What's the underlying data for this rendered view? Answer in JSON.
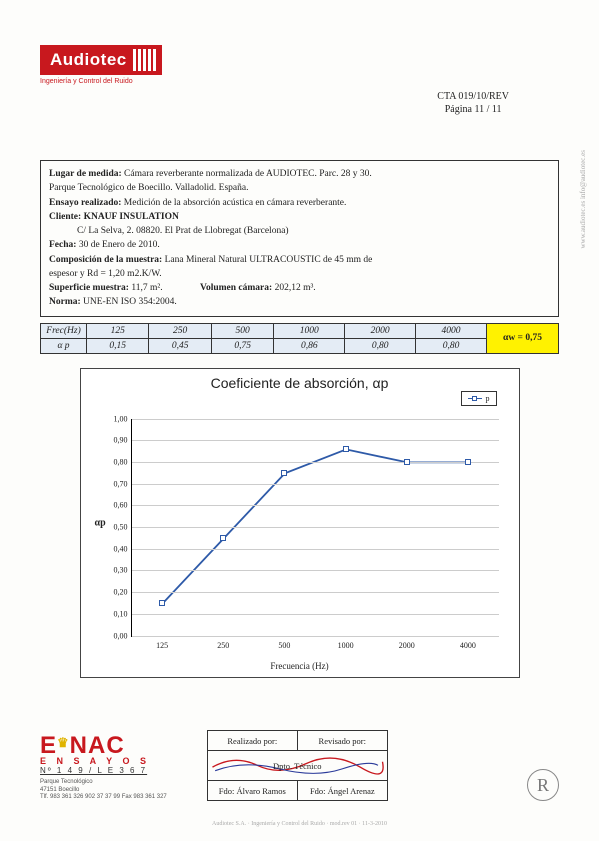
{
  "logo": {
    "name": "Audiotec",
    "tagline": "Ingeniería y Control del Ruido"
  },
  "doc_ref": {
    "code": "CTA 019/10/REV",
    "page": "Página 11 / 11"
  },
  "side_text": "www.audiotec.es    info@audiotec.es",
  "info": {
    "lugar_label": "Lugar de medida:",
    "lugar": "Cámara reverberante normalizada de AUDIOTEC. Parc. 28 y 30.",
    "lugar2": "Parque Tecnológico de Boecillo. Valladolid. España.",
    "ensayo_label": "Ensayo realizado:",
    "ensayo": "Medición de la absorción acústica en cámara reverberante.",
    "cliente_label": "Cliente:",
    "cliente": "KNAUF INSULATION",
    "cliente_addr": "C/ La Selva, 2. 08820. El Prat de Llobregat (Barcelona)",
    "fecha_label": "Fecha:",
    "fecha": "30 de Enero de 2010.",
    "comp_label": "Composición de la muestra:",
    "comp": "Lana Mineral Natural ULTRACOUSTIC de 45 mm de",
    "comp2": "espesor y Rd = 1,20 m2.K/W.",
    "sup_label": "Superficie muestra:",
    "sup": "11,7 m².",
    "vol_label": "Volumen cámara:",
    "vol": "202,12 m³.",
    "norma_label": "Norma:",
    "norma": "UNE-EN ISO 354:2004."
  },
  "table": {
    "freq_label": "Frec(Hz)",
    "alpha_label": "α p",
    "cols": [
      "125",
      "250",
      "500",
      "1000",
      "2000",
      "4000"
    ],
    "vals": [
      "0,15",
      "0,45",
      "0,75",
      "0,86",
      "0,80",
      "0,80"
    ],
    "aw_label": "αw = 0,75"
  },
  "chart": {
    "title": "Coeficiente de absorción,  αp",
    "legend": "p",
    "x_title": "Frecuencia (Hz)",
    "y_title": "αp",
    "x_categories": [
      "125",
      "250",
      "500",
      "1000",
      "2000",
      "4000"
    ],
    "y_ticks": [
      "0,00",
      "0,10",
      "0,20",
      "0,30",
      "0,40",
      "0,50",
      "0,60",
      "0,70",
      "0,80",
      "0,90",
      "1,00"
    ],
    "series": [
      0.15,
      0.45,
      0.75,
      0.86,
      0.8,
      0.8
    ],
    "line_color": "#2e5aa8",
    "grid_color": "#cccccc",
    "ylim": [
      0,
      1
    ]
  },
  "footer": {
    "enac_main": "ENAC",
    "enac_sub": "E N S A Y O S",
    "enac_num": "Nº 1 4 9 / L E 3 6 7",
    "addr1": "Parque Tecnológico",
    "addr2": "47151 Boecillo",
    "addr3": "Tlf. 983 361 326    902 37 37 99    Fax 983 361 327",
    "sig_h1": "Realizado por:",
    "sig_h2": "Revisado por:",
    "sig_sub": "Dpto. Técnico",
    "sig_name1": "Fdo: Álvaro Ramos",
    "sig_name2": "Fdo: Ángel Arenaz",
    "r": "R"
  },
  "tiny": "Audiotec S.A. · Ingeniería y Control del Ruido · mod.rev 01 · 11-3-2010"
}
